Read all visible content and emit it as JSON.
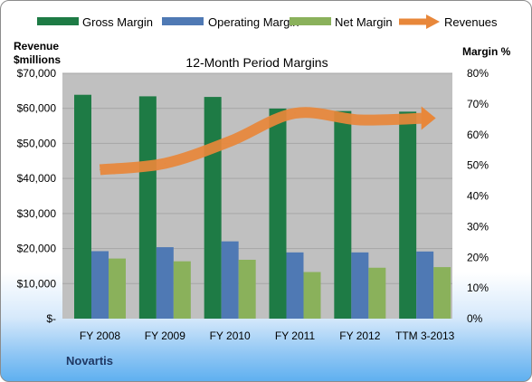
{
  "chart_data": {
    "type": "bar",
    "title": "12-Month Period Margins",
    "company": "Novartis",
    "categories": [
      "FY 2008",
      "FY 2009",
      "FY 2010",
      "FY 2011",
      "FY 2012",
      "TTM 3-2013"
    ],
    "y_left": {
      "label_line1": "Revenue",
      "label_line2": "$millions",
      "lim": [
        0,
        70000
      ],
      "ticks": [
        "$-",
        "$10,000",
        "$20,000",
        "$30,000",
        "$40,000",
        "$50,000",
        "$60,000",
        "$70,000"
      ]
    },
    "y_right": {
      "label": "Margin  %",
      "lim": [
        0,
        80
      ],
      "ticks": [
        "0%",
        "10%",
        "20%",
        "30%",
        "40%",
        "50%",
        "60%",
        "70%",
        "80%"
      ]
    },
    "series": [
      {
        "name": "Gross Margin",
        "kind": "bar",
        "axis": "right",
        "color": "#1e7b45",
        "values": [
          73,
          72.5,
          72.3,
          68.5,
          67.7,
          67.5
        ]
      },
      {
        "name": "Operating Margin",
        "kind": "bar",
        "axis": "right",
        "color": "#4f79b4",
        "values": [
          22,
          23.3,
          25.2,
          21.6,
          21.6,
          21.9
        ]
      },
      {
        "name": "Net Margin",
        "kind": "bar",
        "axis": "right",
        "color": "#8ab15b",
        "values": [
          19.6,
          18.7,
          19.2,
          15.2,
          16.6,
          16.8
        ]
      },
      {
        "name": "Revenues",
        "kind": "line",
        "axis": "left",
        "color": "#e8873a",
        "values": [
          42500,
          44300,
          50600,
          58600,
          56700,
          57200
        ]
      }
    ],
    "legend_position": "top",
    "plot_background": "#c0c0c0",
    "grid": true
  }
}
